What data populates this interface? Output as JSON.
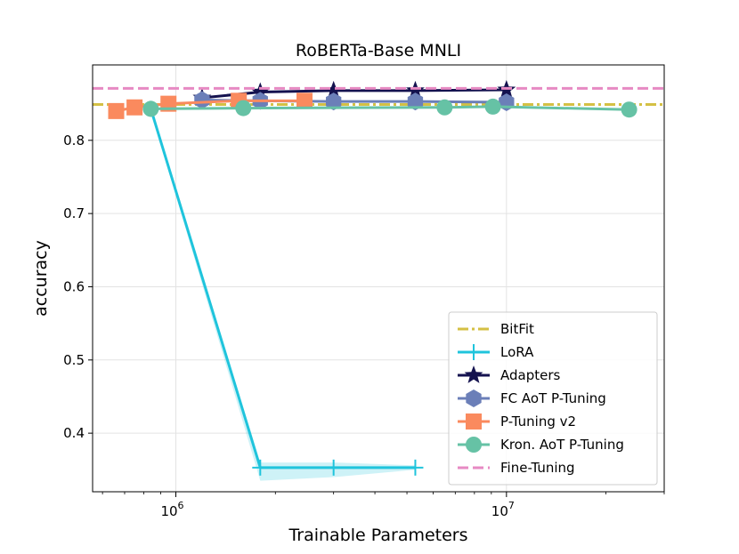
{
  "chart_data": {
    "type": "line",
    "title": "RoBERTa-Base MNLI",
    "xlabel": "Trainable Parameters",
    "ylabel": "accuracy",
    "xscale": "log",
    "xlim": [
      560000,
      30000000
    ],
    "ylim": [
      0.32,
      0.903
    ],
    "x_ticks": [
      {
        "value": 1000000,
        "base": "10",
        "exp": "6"
      },
      {
        "value": 10000000,
        "base": "10",
        "exp": "7"
      }
    ],
    "y_ticks": [
      {
        "value": 0.4,
        "label": "0.4"
      },
      {
        "value": 0.5,
        "label": "0.5"
      },
      {
        "value": 0.6,
        "label": "0.6"
      },
      {
        "value": 0.7,
        "label": "0.7"
      },
      {
        "value": 0.8,
        "label": "0.8"
      }
    ],
    "grid": true,
    "legend_position": "lower-right",
    "series": [
      {
        "name": "BitFit",
        "kind": "hline",
        "y": 0.849,
        "color": "#d4c044",
        "dash": "dashdot",
        "marker": "none"
      },
      {
        "name": "LoRA",
        "kind": "line",
        "color": "#1fc4dc",
        "marker": "plus",
        "x": [
          840000,
          1800000,
          3000000,
          5300000
        ],
        "y": [
          0.843,
          0.353,
          0.353,
          0.353
        ],
        "band_low": [
          0.84,
          0.335,
          0.34,
          0.35
        ],
        "band_high": [
          0.846,
          0.36,
          0.36,
          0.356
        ]
      },
      {
        "name": "Adapters",
        "kind": "line",
        "color": "#14124f",
        "marker": "star",
        "x": [
          1200000,
          1800000,
          3000000,
          5300000,
          10000000
        ],
        "y": [
          0.858,
          0.866,
          0.868,
          0.868,
          0.869
        ]
      },
      {
        "name": "FC AoT P-Tuning",
        "kind": "line",
        "color": "#6b7fb8",
        "marker": "hexagon",
        "x": [
          1200000,
          1800000,
          3000000,
          5300000,
          10000000
        ],
        "y": [
          0.855,
          0.854,
          0.853,
          0.853,
          0.852
        ]
      },
      {
        "name": "P-Tuning v2",
        "kind": "line",
        "color": "#fa8a5e",
        "marker": "square",
        "x": [
          660000,
          750000,
          950000,
          1550000,
          2450000
        ],
        "y": [
          0.84,
          0.845,
          0.85,
          0.854,
          0.854
        ]
      },
      {
        "name": "Kron. AoT P-Tuning",
        "kind": "line",
        "color": "#66c2a5",
        "marker": "circle",
        "x": [
          840000,
          1600000,
          6500000,
          9100000,
          23500000
        ],
        "y": [
          0.843,
          0.844,
          0.845,
          0.846,
          0.842
        ]
      },
      {
        "name": "Fine-Tuning",
        "kind": "hline",
        "y": 0.871,
        "color": "#e78ac3",
        "dash": "dashed",
        "marker": "none"
      }
    ]
  }
}
